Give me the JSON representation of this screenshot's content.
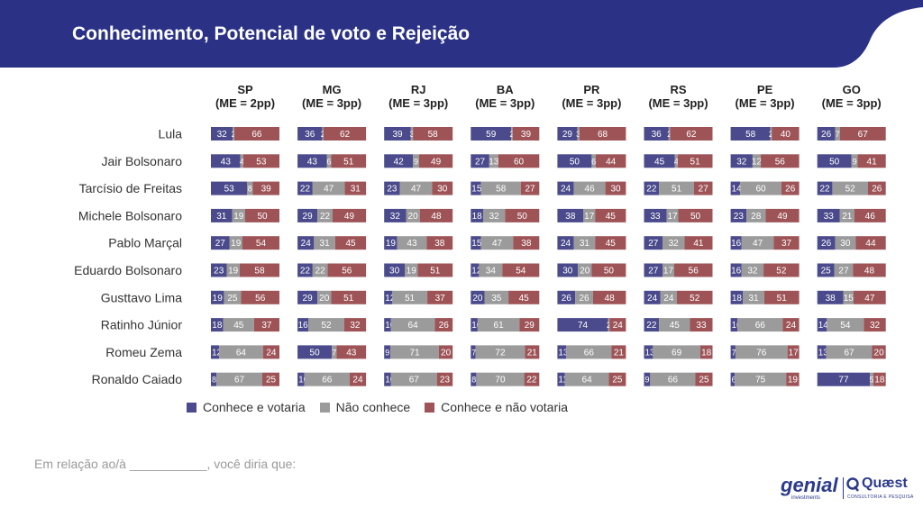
{
  "header": {
    "title": "Conhecimento, Potencial de voto e Rejeição"
  },
  "chart_data": {
    "type": "bar",
    "stacked": true,
    "orientation": "horizontal",
    "categories": [
      "Lula",
      "Jair Bolsonaro",
      "Tarcísio de Freitas",
      "Michele Bolsonaro",
      "Pablo Marçal",
      "Eduardo Bolsonaro",
      "Gusttavo Lima",
      "Ratinho Júnior",
      "Romeu Zema",
      "Ronaldo Caiado"
    ],
    "series_names": [
      "Conhece e votaria",
      "Não conhece",
      "Conhece e não votaria"
    ],
    "colors": [
      "#4a4a8c",
      "#9b9b9b",
      "#9e5457"
    ],
    "xlim": [
      0,
      100
    ],
    "legend": "bottom",
    "panels": [
      {
        "region": "SP",
        "margin": "(ME = 2pp)",
        "values": [
          [
            32,
            2,
            66
          ],
          [
            43,
            4,
            53
          ],
          [
            53,
            8,
            39
          ],
          [
            31,
            19,
            50
          ],
          [
            27,
            19,
            54
          ],
          [
            23,
            19,
            58
          ],
          [
            19,
            25,
            56
          ],
          [
            18,
            45,
            37
          ],
          [
            12,
            64,
            24
          ],
          [
            8,
            67,
            25
          ]
        ]
      },
      {
        "region": "MG",
        "margin": "(ME = 3pp)",
        "values": [
          [
            36,
            2,
            62
          ],
          [
            43,
            6,
            51
          ],
          [
            22,
            47,
            31
          ],
          [
            29,
            22,
            49
          ],
          [
            24,
            31,
            45
          ],
          [
            22,
            22,
            56
          ],
          [
            29,
            20,
            51
          ],
          [
            16,
            52,
            32
          ],
          [
            50,
            7,
            43
          ],
          [
            10,
            66,
            24
          ]
        ]
      },
      {
        "region": "RJ",
        "margin": "(ME = 3pp)",
        "values": [
          [
            39,
            3,
            58
          ],
          [
            42,
            9,
            49
          ],
          [
            23,
            47,
            30
          ],
          [
            32,
            20,
            48
          ],
          [
            19,
            43,
            38
          ],
          [
            30,
            19,
            51
          ],
          [
            12,
            51,
            37
          ],
          [
            10,
            64,
            26
          ],
          [
            9,
            71,
            20
          ],
          [
            10,
            67,
            23
          ]
        ]
      },
      {
        "region": "BA",
        "margin": "(ME = 3pp)",
        "values": [
          [
            59,
            2,
            39
          ],
          [
            27,
            13,
            60
          ],
          [
            15,
            58,
            27
          ],
          [
            18,
            32,
            50
          ],
          [
            15,
            47,
            38
          ],
          [
            12,
            34,
            54
          ],
          [
            20,
            35,
            45
          ],
          [
            10,
            61,
            29
          ],
          [
            7,
            72,
            21
          ],
          [
            8,
            70,
            22
          ]
        ]
      },
      {
        "region": "PR",
        "margin": "(ME = 3pp)",
        "values": [
          [
            29,
            3,
            68
          ],
          [
            50,
            6,
            44
          ],
          [
            24,
            46,
            30
          ],
          [
            38,
            17,
            45
          ],
          [
            24,
            31,
            45
          ],
          [
            30,
            20,
            50
          ],
          [
            26,
            26,
            48
          ],
          [
            74,
            2,
            24
          ],
          [
            13,
            66,
            21
          ],
          [
            11,
            64,
            25
          ]
        ]
      },
      {
        "region": "RS",
        "margin": "(ME = 3pp)",
        "values": [
          [
            36,
            2,
            62
          ],
          [
            45,
            4,
            51
          ],
          [
            22,
            51,
            27
          ],
          [
            33,
            17,
            50
          ],
          [
            27,
            32,
            41
          ],
          [
            27,
            17,
            56
          ],
          [
            24,
            24,
            52
          ],
          [
            22,
            45,
            33
          ],
          [
            13,
            69,
            18
          ],
          [
            9,
            66,
            25
          ]
        ]
      },
      {
        "region": "PE",
        "margin": "(ME = 3pp)",
        "values": [
          [
            58,
            2,
            40
          ],
          [
            32,
            12,
            56
          ],
          [
            14,
            60,
            26
          ],
          [
            23,
            28,
            49
          ],
          [
            16,
            47,
            37
          ],
          [
            16,
            32,
            52
          ],
          [
            18,
            31,
            51
          ],
          [
            10,
            66,
            24
          ],
          [
            7,
            76,
            17
          ],
          [
            6,
            75,
            19
          ]
        ]
      },
      {
        "region": "GO",
        "margin": "(ME = 3pp)",
        "values": [
          [
            26,
            7,
            67
          ],
          [
            50,
            9,
            41
          ],
          [
            22,
            52,
            26
          ],
          [
            33,
            21,
            46
          ],
          [
            26,
            30,
            44
          ],
          [
            25,
            27,
            48
          ],
          [
            38,
            15,
            47
          ],
          [
            14,
            54,
            32
          ],
          [
            13,
            67,
            20
          ],
          [
            77,
            5,
            18
          ]
        ]
      }
    ]
  },
  "footnote": "Em relação ao/à ___________, você diria que:",
  "logos": {
    "genial": "genial",
    "genial_sub": "investments",
    "quaest": "Quæst",
    "quaest_sub": "CONSULTORIA E PESQUISA"
  }
}
